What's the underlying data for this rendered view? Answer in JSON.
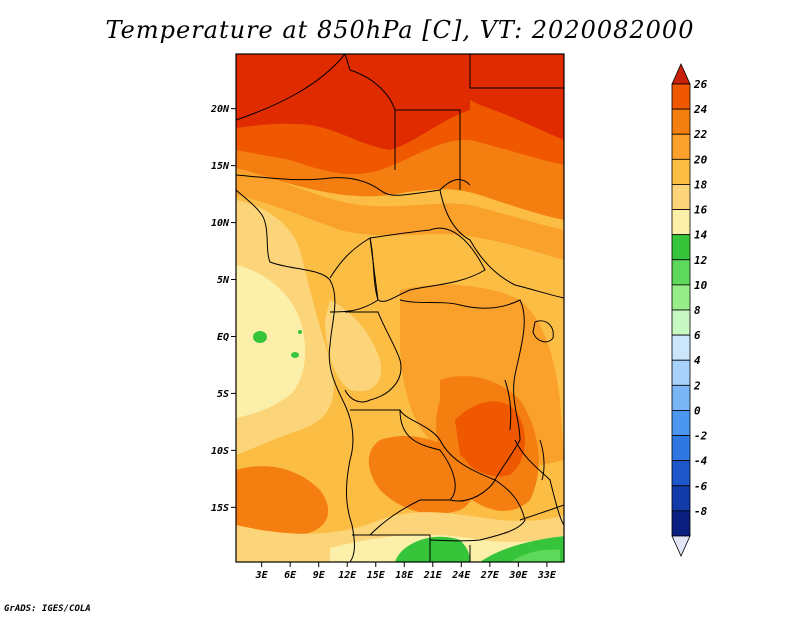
{
  "title": "Temperature at 850hPa [C], VT: 2020082000",
  "credit": "GrADS: IGES/COLA",
  "lat_ticks": [
    {
      "label": "20N",
      "value": 20
    },
    {
      "label": "15N",
      "value": 15
    },
    {
      "label": "10N",
      "value": 10
    },
    {
      "label": "5N",
      "value": 5
    },
    {
      "label": "EQ",
      "value": 0
    },
    {
      "label": "5S",
      "value": -5
    },
    {
      "label": "10S",
      "value": -10
    },
    {
      "label": "15S",
      "value": -15
    }
  ],
  "lon_ticks": [
    {
      "label": "3E",
      "value": 3
    },
    {
      "label": "6E",
      "value": 6
    },
    {
      "label": "9E",
      "value": 9
    },
    {
      "label": "12E",
      "value": 12
    },
    {
      "label": "15E",
      "value": 15
    },
    {
      "label": "18E",
      "value": 18
    },
    {
      "label": "21E",
      "value": 21
    },
    {
      "label": "24E",
      "value": 24
    },
    {
      "label": "27E",
      "value": 27
    },
    {
      "label": "30E",
      "value": 30
    },
    {
      "label": "33E",
      "value": 33
    }
  ],
  "lon_range": [
    0.3,
    34.8
  ],
  "lat_range": [
    -19.8,
    24.8
  ],
  "colorbar": {
    "labels": [
      "26",
      "24",
      "22",
      "20",
      "18",
      "16",
      "14",
      "12",
      "10",
      "8",
      "6",
      "4",
      "2",
      "0",
      "-2",
      "-4",
      "-6",
      "-8"
    ],
    "colors": [
      "#e02b00",
      "#f05800",
      "#f57e10",
      "#f9a12a",
      "#fbbd44",
      "#fcd57a",
      "#fcefaa",
      "#36c43a",
      "#5ed85a",
      "#97ed8a",
      "#c8f8c4",
      "#cce6fb",
      "#a7d0fa",
      "#7ab6f6",
      "#4b97f0",
      "#2f78e1",
      "#1e57c9",
      "#123aa9",
      "#0b1f80",
      "#08055e"
    ],
    "top_arrow_color": "#c8200a",
    "bottom_arrow_color": "#e2e6f8"
  }
}
